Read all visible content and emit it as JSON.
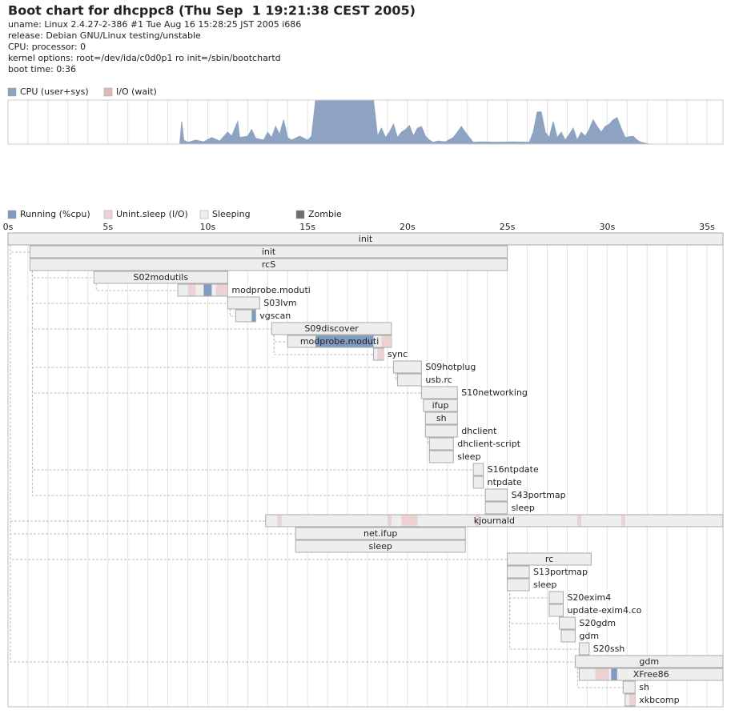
{
  "header": {
    "title": "Boot chart for dhcppc8 (Thu Sep  1 19:21:38 CEST 2005)",
    "lines": [
      "uname: Linux 2.4.27-2-386 #1 Tue Aug 16 15:28:25 JST 2005 i686",
      "release: Debian GNU/Linux testing/unstable",
      "CPU: processor: 0",
      "kernel options: root=/dev/ida/c0d0p1 ro init=/sbin/bootchartd",
      "boot time: 0:36"
    ]
  },
  "chart_data": [
    {
      "type": "area",
      "legend": [
        {
          "name": "CPU (user+sys)",
          "color": "#8ea3c2"
        },
        {
          "name": "I/O (wait)",
          "color": "#e0baba"
        }
      ],
      "color": "#8ea3c2",
      "xlim": [
        0,
        35.8
      ],
      "ylim": [
        0,
        100
      ],
      "grid_step": 1,
      "x": [
        8.6,
        8.7,
        8.8,
        9.0,
        9.4,
        9.8,
        10.2,
        10.6,
        11.0,
        11.2,
        11.5,
        11.6,
        12.0,
        12.2,
        12.4,
        12.8,
        13.0,
        13.2,
        13.4,
        13.6,
        13.8,
        14.0,
        14.2,
        14.6,
        15.0,
        15.2,
        15.4,
        18.3,
        18.5,
        18.7,
        18.9,
        19.1,
        19.3,
        19.5,
        19.7,
        19.9,
        20.1,
        20.3,
        20.5,
        20.7,
        20.9,
        21.1,
        21.3,
        21.5,
        21.9,
        22.3,
        22.5,
        22.7,
        22.9,
        23.1,
        23.3,
        23.7,
        24.5,
        25.3,
        26.1,
        26.3,
        26.5,
        26.7,
        26.9,
        27.1,
        27.3,
        27.5,
        27.7,
        27.9,
        28.1,
        28.3,
        28.5,
        28.7,
        28.9,
        29.1,
        29.3,
        29.5,
        29.7,
        29.9,
        30.1,
        30.3,
        30.5,
        30.7,
        30.9,
        31.3,
        31.5,
        31.7,
        32.1
      ],
      "values": [
        0,
        51,
        9,
        4,
        9,
        5,
        15,
        7,
        27,
        18,
        51,
        15,
        18,
        33,
        13,
        9,
        27,
        15,
        40,
        22,
        55,
        15,
        9,
        18,
        9,
        18,
        100,
        100,
        18,
        36,
        15,
        27,
        45,
        15,
        27,
        33,
        42,
        18,
        36,
        40,
        18,
        9,
        4,
        7,
        5,
        15,
        27,
        40,
        27,
        15,
        4,
        5,
        4,
        5,
        4,
        27,
        73,
        73,
        27,
        15,
        51,
        15,
        27,
        9,
        22,
        36,
        9,
        27,
        18,
        33,
        55,
        40,
        27,
        40,
        45,
        55,
        60,
        36,
        15,
        18,
        9,
        4,
        0
      ]
    },
    {
      "type": "gantt",
      "legend": [
        {
          "name": "Running (%cpu)",
          "color": "#7f9bc2"
        },
        {
          "name": "Unint.sleep (I/O)",
          "color": "#ecd2d2"
        },
        {
          "name": "Sleeping",
          "color": "#eeeeee"
        },
        {
          "name": "Zombie",
          "color": "#6e6e6e"
        }
      ],
      "xlim": [
        0,
        35.8
      ],
      "grid_step": 1,
      "xticks": [
        {
          "value": 0,
          "label": "0s"
        },
        {
          "value": 5,
          "label": "5s"
        },
        {
          "value": 10,
          "label": "10s"
        },
        {
          "value": 15,
          "label": "15s"
        },
        {
          "value": 20,
          "label": "20s"
        },
        {
          "value": 25,
          "label": "25s"
        },
        {
          "value": 30,
          "label": "30s"
        },
        {
          "value": 35,
          "label": "35s"
        }
      ],
      "processes": [
        {
          "name": "init",
          "start": 0,
          "end": 35.8,
          "parent": null
        },
        {
          "name": "init",
          "start": 1.1,
          "end": 25.0,
          "parent": 0
        },
        {
          "name": "rcS",
          "start": 1.1,
          "end": 25.0,
          "parent": 1
        },
        {
          "name": "S02modutils",
          "start": 4.3,
          "end": 11.0,
          "parent": 2
        },
        {
          "name": "modprobe.moduti",
          "start": 8.5,
          "end": 11.0,
          "parent": 3,
          "segments": [
            {
              "start": 9.0,
              "end": 9.4,
              "state": 1
            },
            {
              "start": 9.8,
              "end": 10.2,
              "state": 0
            },
            {
              "start": 10.4,
              "end": 11.0,
              "state": 1
            }
          ]
        },
        {
          "name": "S03lvm",
          "start": 11.0,
          "end": 12.6,
          "parent": 2
        },
        {
          "name": "vgscan",
          "start": 11.4,
          "end": 12.4,
          "parent": 5,
          "segments": [
            {
              "start": 12.2,
              "end": 12.4,
              "state": 0
            }
          ]
        },
        {
          "name": "S09discover",
          "start": 13.2,
          "end": 19.2,
          "parent": 2
        },
        {
          "name": "modprobe.moduti",
          "start": 14.0,
          "end": 19.2,
          "parent": 7,
          "segments": [
            {
              "start": 15.4,
              "end": 18.3,
              "state": 0
            },
            {
              "start": 18.7,
              "end": 19.2,
              "state": 1
            }
          ]
        },
        {
          "name": "sync",
          "start": 18.3,
          "end": 18.8,
          "parent": 7,
          "segments": [
            {
              "start": 18.5,
              "end": 18.8,
              "state": 1
            }
          ]
        },
        {
          "name": "S09hotplug",
          "start": 19.3,
          "end": 20.7,
          "parent": 2
        },
        {
          "name": "usb.rc",
          "start": 19.5,
          "end": 20.7,
          "parent": 10
        },
        {
          "name": "S10networking",
          "start": 20.7,
          "end": 22.5,
          "parent": 2
        },
        {
          "name": "ifup",
          "start": 20.8,
          "end": 22.5,
          "parent": 12
        },
        {
          "name": "sh",
          "start": 20.9,
          "end": 22.5,
          "parent": 13
        },
        {
          "name": "dhclient",
          "start": 20.9,
          "end": 22.5,
          "parent": 14
        },
        {
          "name": "dhclient-script",
          "start": 21.1,
          "end": 22.3,
          "parent": 15
        },
        {
          "name": "sleep",
          "start": 21.1,
          "end": 22.3,
          "parent": 16
        },
        {
          "name": "S16ntpdate",
          "start": 23.3,
          "end": 23.8,
          "parent": 2
        },
        {
          "name": "ntpdate",
          "start": 23.3,
          "end": 23.8,
          "parent": 18
        },
        {
          "name": "S43portmap",
          "start": 23.9,
          "end": 25.0,
          "parent": 2
        },
        {
          "name": "sleep",
          "start": 23.9,
          "end": 25.0,
          "parent": 20
        },
        {
          "name": "kjournald",
          "start": 12.9,
          "end": 35.8,
          "parent": 0,
          "segments": [
            {
              "start": 13.5,
              "end": 13.7,
              "state": 1
            },
            {
              "start": 19.0,
              "end": 19.2,
              "state": 1
            },
            {
              "start": 19.7,
              "end": 20.5,
              "state": 1
            },
            {
              "start": 23.4,
              "end": 23.6,
              "state": 1
            },
            {
              "start": 28.5,
              "end": 28.7,
              "state": 1
            },
            {
              "start": 30.7,
              "end": 30.9,
              "state": 1
            }
          ]
        },
        {
          "name": "net.ifup",
          "start": 14.4,
          "end": 22.9,
          "parent": 0
        },
        {
          "name": "sleep",
          "start": 14.4,
          "end": 22.9,
          "parent": 23
        },
        {
          "name": "rc",
          "start": 25.0,
          "end": 29.2,
          "parent": 0
        },
        {
          "name": "S13portmap",
          "start": 25.0,
          "end": 26.1,
          "parent": 25
        },
        {
          "name": "sleep",
          "start": 25.0,
          "end": 26.1,
          "parent": 26
        },
        {
          "name": "S20exim4",
          "start": 27.1,
          "end": 27.8,
          "parent": 25
        },
        {
          "name": "update-exim4.co",
          "start": 27.1,
          "end": 27.8,
          "parent": 28
        },
        {
          "name": "S20gdm",
          "start": 27.6,
          "end": 28.4,
          "parent": 25
        },
        {
          "name": "gdm",
          "start": 27.7,
          "end": 28.4,
          "parent": 30
        },
        {
          "name": "S20ssh",
          "start": 28.6,
          "end": 29.1,
          "parent": 25
        },
        {
          "name": "gdm",
          "start": 28.4,
          "end": 35.8,
          "parent": 0
        },
        {
          "name": "XFree86",
          "start": 28.6,
          "end": 35.8,
          "parent": 33,
          "segments": [
            {
              "start": 29.4,
              "end": 30.1,
              "state": 1
            },
            {
              "start": 30.2,
              "end": 30.5,
              "state": 0
            }
          ]
        },
        {
          "name": "sh",
          "start": 30.8,
          "end": 31.4,
          "parent": 33
        },
        {
          "name": "xkbcomp",
          "start": 30.9,
          "end": 31.4,
          "parent": 35,
          "segments": [
            {
              "start": 31.1,
              "end": 31.4,
              "state": 1
            }
          ]
        }
      ]
    }
  ]
}
